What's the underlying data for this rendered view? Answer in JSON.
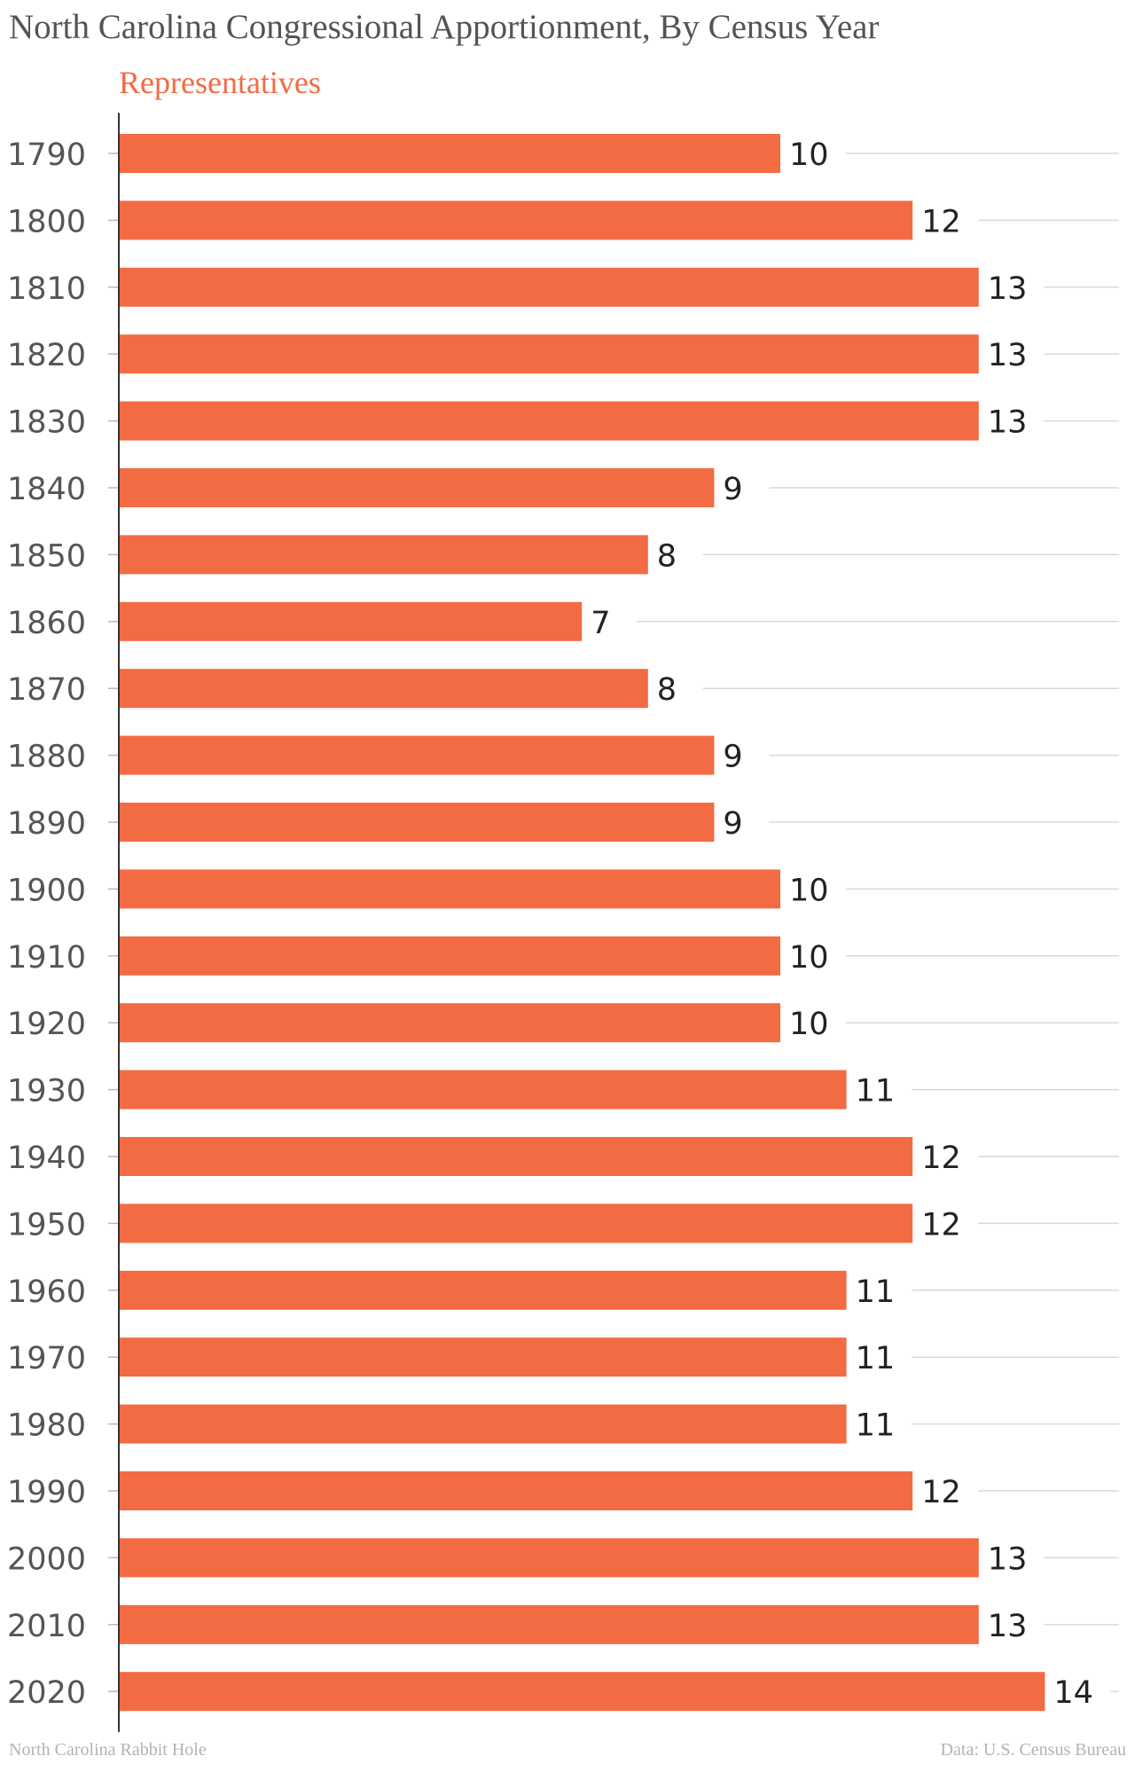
{
  "chart_data": {
    "type": "bar",
    "orientation": "horizontal",
    "title": "North Carolina Congressional Apportionment, By Census Year",
    "series": [
      {
        "name": "Representatives",
        "color": "#f36b43",
        "values": [
          10,
          12,
          13,
          13,
          13,
          9,
          8,
          7,
          8,
          9,
          9,
          10,
          10,
          10,
          11,
          12,
          12,
          11,
          11,
          11,
          12,
          13,
          13,
          14
        ]
      }
    ],
    "categories": [
      "1790",
      "1800",
      "1810",
      "1820",
      "1830",
      "1840",
      "1850",
      "1860",
      "1870",
      "1880",
      "1890",
      "1900",
      "1910",
      "1920",
      "1930",
      "1940",
      "1950",
      "1960",
      "1970",
      "1980",
      "1990",
      "2000",
      "2010",
      "2020"
    ],
    "xlim": [
      0,
      15
    ],
    "grid": true,
    "xlabel": "",
    "ylabel": ""
  },
  "footer": {
    "source_left": "North Carolina Rabbit Hole",
    "source_right": "Data: U.S. Census Bureau"
  }
}
